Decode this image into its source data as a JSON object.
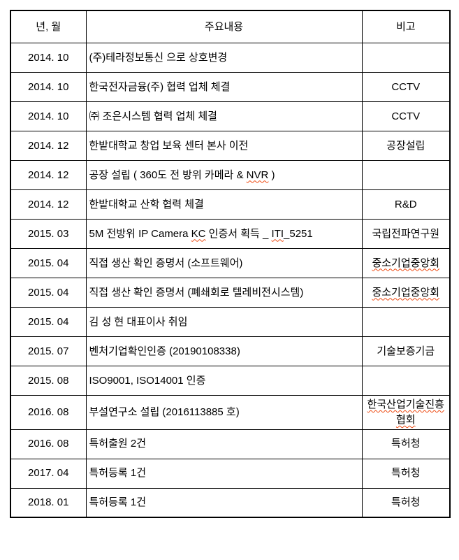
{
  "table": {
    "header": {
      "col_year": "년, 월",
      "col_content": "주요내용",
      "col_note": "비고"
    },
    "rows": [
      {
        "date": "2014. 10",
        "content": [
          {
            "t": "(주)테라정보통신 으로 상호변경"
          }
        ],
        "note": []
      },
      {
        "date": "2014. 10",
        "content": [
          {
            "t": "한국전자금융(주) 협력 업체 체결"
          }
        ],
        "note": [
          {
            "t": "CCTV"
          }
        ]
      },
      {
        "date": "2014. 10",
        "content": [
          {
            "t": "㈜ 조은시스템 협력 업체 체결"
          }
        ],
        "note": [
          {
            "t": "CCTV"
          }
        ]
      },
      {
        "date": "2014. 12",
        "content": [
          {
            "t": "한밭대학교 창업 보육 센터 본사 이전"
          }
        ],
        "note": [
          {
            "t": "공장설립"
          }
        ]
      },
      {
        "date": "2014. 12",
        "content": [
          {
            "t": "공장 설립 ( 360도 전 방위 카메라 & "
          },
          {
            "t": "NVR",
            "wavy": true
          },
          {
            "t": " )"
          }
        ],
        "note": []
      },
      {
        "date": "2014. 12",
        "content": [
          {
            "t": "한밭대학교 산학 협력 체결"
          }
        ],
        "note": [
          {
            "t": "R&D"
          }
        ]
      },
      {
        "date": "2015. 03",
        "content": [
          {
            "t": "5M 전방위 IP Camera "
          },
          {
            "t": "KC",
            "wavy": true
          },
          {
            "t": " 인증서 획득 _ "
          },
          {
            "t": "ITI",
            "wavy": true
          },
          {
            "t": "_5251"
          }
        ],
        "note": [
          {
            "t": "국립전파연구원"
          }
        ]
      },
      {
        "date": "2015. 04",
        "content": [
          {
            "t": "직접 생산 확인 증명서 (소프트웨어)"
          }
        ],
        "note": [
          {
            "t": "중소기업중앙회",
            "wavy": true
          }
        ]
      },
      {
        "date": "2015. 04",
        "content": [
          {
            "t": "직접 생산 확인 증명서 (폐쇄회로 텔레비전시스템)"
          }
        ],
        "note": [
          {
            "t": "중소기업중앙회",
            "wavy": true
          }
        ]
      },
      {
        "date": "2015. 04",
        "content": [
          {
            "t": "김 성 현 대표이사 취임"
          }
        ],
        "note": []
      },
      {
        "date": "2015. 07",
        "content": [
          {
            "t": "벤처기업확인인증 (20190108338)"
          }
        ],
        "note": [
          {
            "t": "기술보증기금"
          }
        ]
      },
      {
        "date": "2015. 08",
        "content": [
          {
            "t": "ISO9001, ISO14001 인증"
          }
        ],
        "note": []
      },
      {
        "date": "2016. 08",
        "content": [
          {
            "t": "부설연구소 설립 (2016113885 호)"
          }
        ],
        "note": [
          {
            "t": "한국산업기술진흥협회",
            "wavy": true
          }
        ]
      },
      {
        "date": "2016. 08",
        "content": [
          {
            "t": "특허출원 2건"
          }
        ],
        "note": [
          {
            "t": "특허청"
          }
        ]
      },
      {
        "date": "2017. 04",
        "content": [
          {
            "t": "특허등록 1건"
          }
        ],
        "note": [
          {
            "t": "특허청"
          }
        ]
      },
      {
        "date": "2018. 01",
        "content": [
          {
            "t": "특허등록 1건"
          }
        ],
        "note": [
          {
            "t": "특허청"
          }
        ]
      }
    ]
  },
  "colors": {
    "background": "#ffffff",
    "text": "#000000",
    "border": "#000000",
    "spellcheck_underline": "#ee4a12"
  }
}
